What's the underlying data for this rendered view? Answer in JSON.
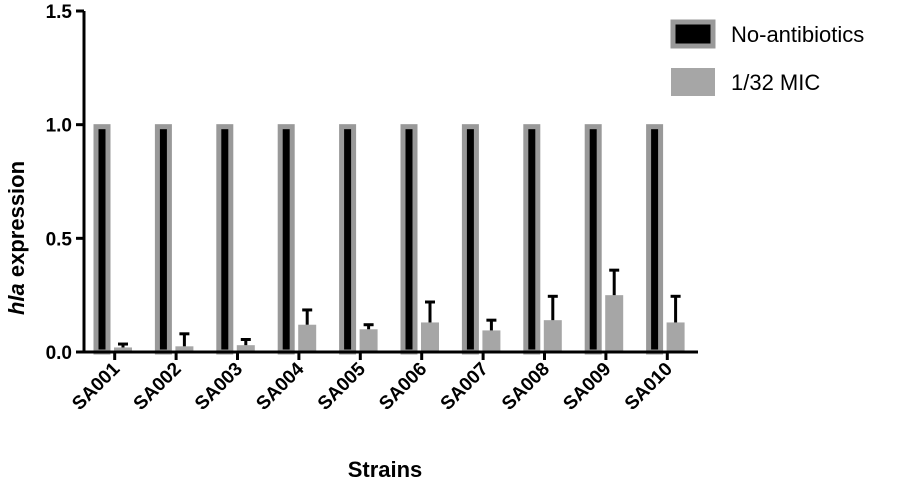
{
  "chart_data": {
    "type": "bar",
    "title": "",
    "xlabel": "Strains",
    "ylabel_italic_part": "hla",
    "ylabel_rest": " expression",
    "ylim": [
      0,
      1.5
    ],
    "yticks": [
      "0.0",
      "0.5",
      "1.0",
      "1.5"
    ],
    "ytick_values": [
      0,
      0.5,
      1.0,
      1.5
    ],
    "grid": false,
    "legend_position": "top-right",
    "categories": [
      "SA001",
      "SA002",
      "SA003",
      "SA004",
      "SA005",
      "SA006",
      "SA007",
      "SA008",
      "SA009",
      "SA010"
    ],
    "series": [
      {
        "name": "No-antibiotics",
        "color": "#000000",
        "border_color": "#999999",
        "values": [
          1.0,
          1.0,
          1.0,
          1.0,
          1.0,
          1.0,
          1.0,
          1.0,
          1.0,
          1.0
        ],
        "errors": [
          0,
          0,
          0,
          0,
          0,
          0,
          0,
          0,
          0,
          0
        ]
      },
      {
        "name": "1/32 MIC",
        "color": "#a6a6a6",
        "border_color": "#a6a6a6",
        "values": [
          0.02,
          0.025,
          0.03,
          0.12,
          0.1,
          0.13,
          0.095,
          0.14,
          0.25,
          0.13
        ],
        "errors": [
          0.015,
          0.055,
          0.025,
          0.065,
          0.02,
          0.09,
          0.045,
          0.105,
          0.11,
          0.115
        ]
      }
    ]
  }
}
